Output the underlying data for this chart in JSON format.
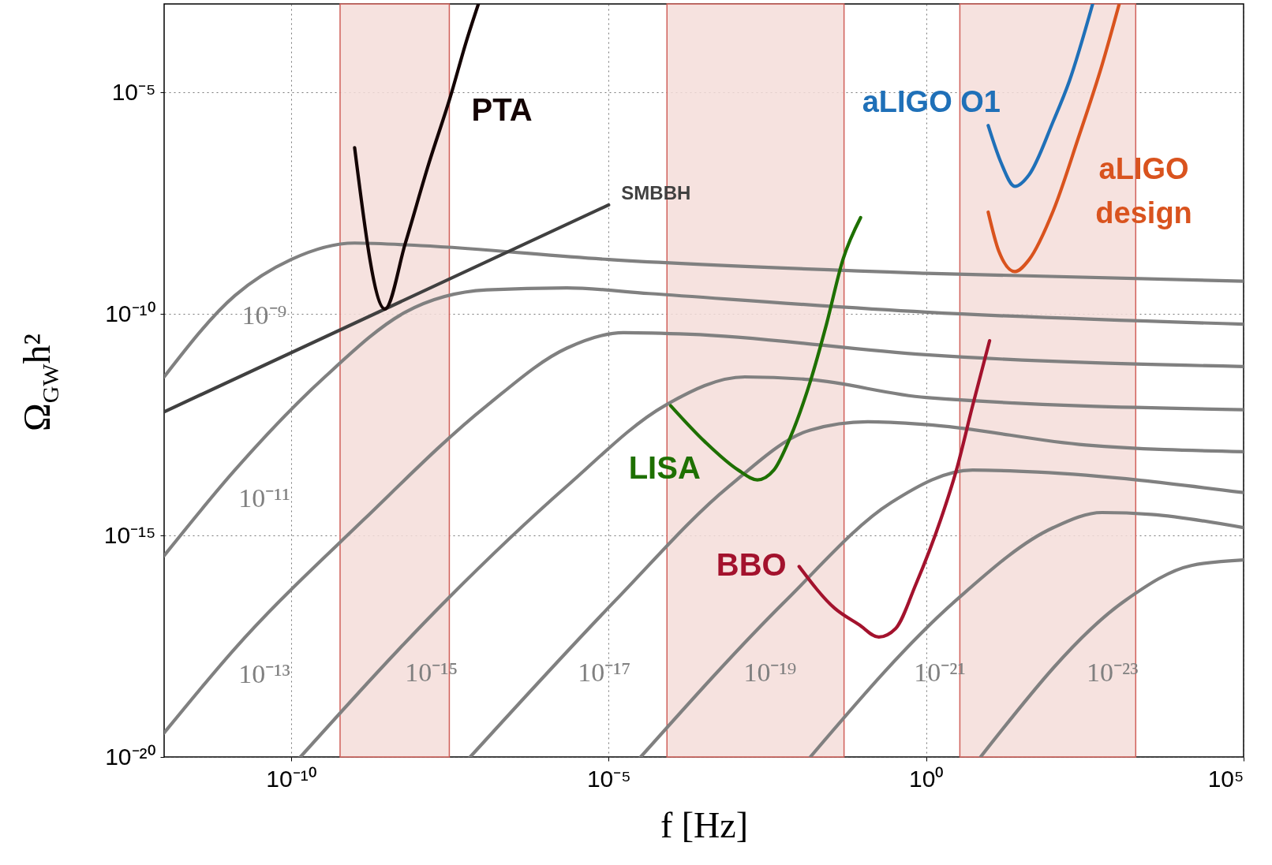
{
  "chart_data": {
    "type": "line",
    "xlabel": "f [Hz]",
    "ylabel": "Ω$_{GW}$h²",
    "log": "xy",
    "grid": true,
    "xlim": [
      1e-12,
      100000.0
    ],
    "ylim": [
      1e-20,
      0.001
    ],
    "xticks": [
      {
        "value": 1e-10,
        "label": "10⁻¹⁰"
      },
      {
        "value": 1e-05,
        "label": "10⁻⁵"
      },
      {
        "value": 1,
        "label": "10⁰"
      },
      {
        "value": 100000.0,
        "label": "10⁵"
      }
    ],
    "yticks": [
      {
        "value": 1e-20,
        "label": "10⁻²⁰"
      },
      {
        "value": 1e-15,
        "label": "10⁻¹⁵"
      },
      {
        "value": 1e-10,
        "label": "10⁻¹⁰"
      },
      {
        "value": 1e-05,
        "label": "10⁻⁵"
      }
    ],
    "bands": [
      {
        "axis": "x",
        "from": 5.9e-10,
        "to": 3.1e-08,
        "color": "#f4ddd9"
      },
      {
        "axis": "x",
        "from": 8.3e-05,
        "to": 0.051,
        "color": "#f4ddd9"
      },
      {
        "axis": "x",
        "from": 3.4,
        "to": 2000,
        "color": "#f4ddd9"
      }
    ],
    "series": [
      {
        "name": "10⁻⁹",
        "color": "#808080",
        "x": [
          1e-12,
          1.3e-11,
          1e-10,
          1e-09,
          1.1e-08,
          1e-05,
          1,
          100000.0
        ],
        "values": [
          3.8e-12,
          2.6e-10,
          1.7e-09,
          4e-09,
          3.5e-09,
          1.7e-09,
          8.3e-10,
          5.5e-10
        ]
      },
      {
        "name": "10⁻¹¹",
        "color": "#808080",
        "x": [
          1e-12,
          1.3e-11,
          3.4e-10,
          6.3e-09,
          1.2e-07,
          2.2e-06,
          4.3e-05,
          1,
          100000.0
        ],
        "values": [
          3.5e-16,
          3e-14,
          3.8e-12,
          1.1e-10,
          3.5e-10,
          3.9e-10,
          2.9e-10,
          1.1e-10,
          5.9e-11
        ]
      },
      {
        "name": "10⁻¹³",
        "color": "#808080",
        "x": [
          1e-12,
          1.3e-11,
          1.4e-09,
          1.2e-07,
          2.2e-06,
          1.7e-05,
          0.00019,
          1,
          100000.0
        ],
        "values": [
          3.5e-20,
          2.8e-18,
          2.3e-15,
          8.5e-13,
          1.7e-11,
          3.8e-11,
          3.5e-11,
          1.2e-11,
          6.5e-12
        ]
      },
      {
        "name": "10⁻¹⁵",
        "color": "#808080",
        "x": [
          1.4e-10,
          2.8e-08,
          2.2e-06,
          7.6e-05,
          0.0014,
          0.015,
          1,
          100000.0
        ],
        "values": [
          1e-20,
          3.5e-17,
          1.3e-14,
          8.5e-13,
          3.8e-12,
          3.3e-12,
          1.3e-12,
          6.9e-13
        ]
      },
      {
        "name": "10⁻¹⁷",
        "color": "#808080",
        "x": [
          6.6e-08,
          1.3e-05,
          0.00079,
          0.015,
          0.12,
          1,
          330,
          100000.0
        ],
        "values": [
          1e-20,
          3.5e-17,
          1.3e-14,
          2.4e-13,
          3.7e-13,
          3.2e-13,
          1.1e-13,
          7.8e-14
        ]
      },
      {
        "name": "10⁻¹⁹",
        "color": "#808080",
        "x": [
          3.2e-05,
          0.0063,
          0.28,
          5.4,
          56,
          100000.0
        ],
        "values": [
          1e-20,
          3.5e-17,
          5.5e-15,
          3e-14,
          2.7e-14,
          9.3e-15
        ]
      },
      {
        "name": "10⁻²¹",
        "color": "#808080",
        "x": [
          0.015,
          3,
          100,
          590,
          3500,
          100000.0
        ],
        "values": [
          1e-20,
          3.5e-17,
          1.5e-15,
          3.3e-15,
          3e-15,
          1.5e-15
        ]
      },
      {
        "name": "10⁻²³",
        "color": "#808080",
        "x": [
          7.2,
          1400,
          15000,
          100000.0
        ],
        "values": [
          1e-20,
          3.5e-17,
          2.1e-16,
          2.8e-16
        ]
      },
      {
        "name": "SMBBH",
        "color": "#404040",
        "x": [
          1e-12,
          1e-05
        ],
        "values": [
          6.2e-13,
          2.9e-08
        ]
      },
      {
        "name": "PTA",
        "color": "#140404",
        "x": [
          1e-09,
          3e-09,
          6.3e-09,
          1.5e-08,
          3.2e-08,
          5.8e-08,
          8.9e-08
        ],
        "values": [
          5.7e-07,
          1.3e-10,
          4e-09,
          2.7e-07,
          7.8e-06,
          0.00015,
          0.001
        ]
      },
      {
        "name": "LISA",
        "color": "#1e7000",
        "x": [
          9.5e-05,
          0.00033,
          0.0011,
          0.0022,
          0.004,
          0.0072,
          0.015,
          0.027,
          0.049,
          0.093
        ],
        "values": [
          8.5e-13,
          1.3e-13,
          3e-14,
          1.8e-14,
          3e-14,
          1.6e-13,
          3e-12,
          5.9e-11,
          1.7e-09,
          1.5e-08
        ]
      },
      {
        "name": "BBO",
        "color": "#a3122d",
        "x": [
          0.01,
          0.036,
          0.087,
          0.18,
          0.33,
          0.69,
          1.7,
          3,
          5.4,
          10
        ],
        "values": [
          2e-16,
          2.3e-17,
          9.8e-18,
          5.1e-18,
          7.9e-18,
          7.9e-17,
          2.3e-15,
          3e-14,
          8.5e-13,
          2.5e-11
        ]
      },
      {
        "name": "aLIGO O1",
        "color": "#1f70b8",
        "x": [
          9.5,
          15,
          25,
          42,
          100,
          180,
          420
        ],
        "values": [
          1.8e-06,
          2.7e-07,
          7.6e-08,
          1.4e-07,
          2.2e-06,
          1.8e-05,
          0.001
        ]
      },
      {
        "name": "aLIGO design",
        "color": "#d9531e",
        "x": [
          9.5,
          14,
          25,
          42,
          100,
          250,
          590,
          1100
        ],
        "values": [
          2e-08,
          2.6e-09,
          9.1e-10,
          1.7e-09,
          2.1e-08,
          9.5e-07,
          4.2e-05,
          0.001
        ]
      }
    ]
  }
}
